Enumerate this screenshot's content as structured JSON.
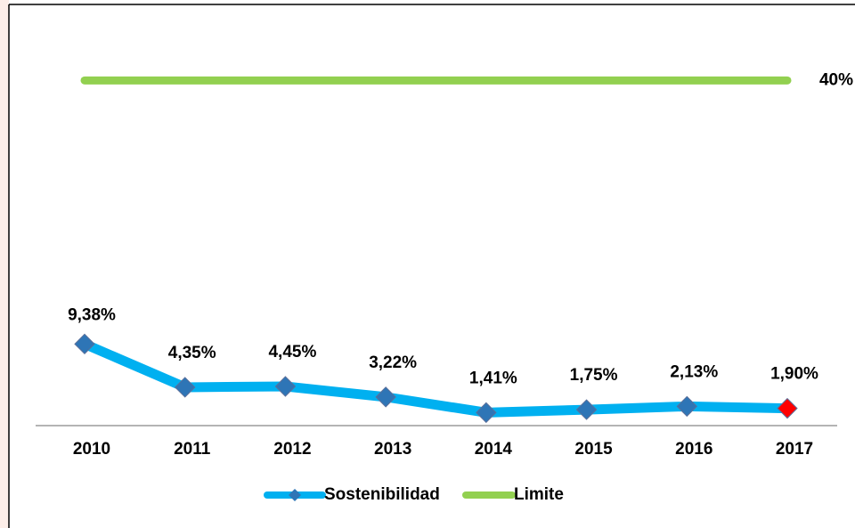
{
  "chart_data": {
    "type": "line",
    "categories": [
      "2010",
      "2011",
      "2012",
      "2013",
      "2014",
      "2015",
      "2016",
      "2017"
    ],
    "series": [
      {
        "name": "Sostenibilidad",
        "color": "#00b0f0",
        "marker_colors": [
          "#2e75b6",
          "#2e75b6",
          "#2e75b6",
          "#2e75b6",
          "#2e75b6",
          "#2e75b6",
          "#2e75b6",
          "#ff0000"
        ],
        "values": [
          9.38,
          4.35,
          4.45,
          3.22,
          1.41,
          1.75,
          2.13,
          1.9
        ],
        "value_labels": [
          "9,38%",
          "4,35%",
          "4,45%",
          "3,22%",
          "1,41%",
          "1,75%",
          "2,13%",
          "1,90%"
        ]
      },
      {
        "name": "Limite",
        "color": "#92d050",
        "values": [
          40,
          40,
          40,
          40,
          40,
          40,
          40,
          40
        ],
        "value_labels": [
          null,
          null,
          null,
          null,
          null,
          null,
          null,
          "40%"
        ]
      }
    ],
    "ylim": [
      0,
      45
    ],
    "legend": "bottom"
  }
}
